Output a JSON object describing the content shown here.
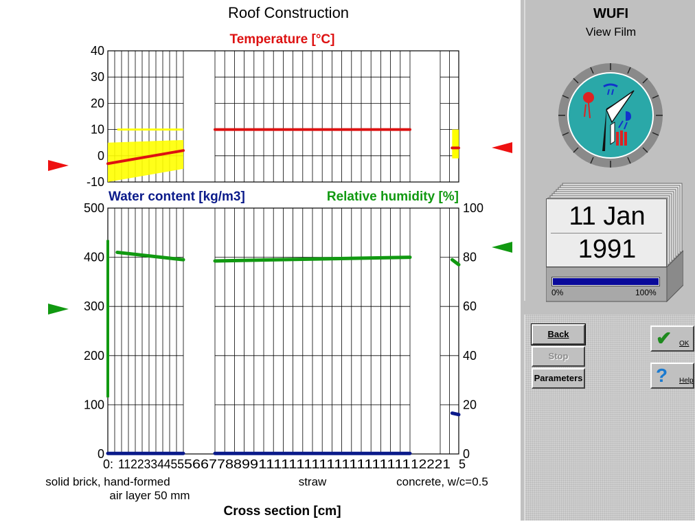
{
  "chart_title": "Roof Construction",
  "temperature": {
    "axis_title": "Temperature [°C]",
    "ylim": [
      -10,
      40
    ],
    "ticks": [
      "40",
      "30",
      "20",
      "10",
      "0",
      "-10"
    ]
  },
  "moisture": {
    "left_axis_title": "Water content [kg/m3]",
    "right_axis_title": "Relative humidity [%]",
    "left_ylim": [
      0,
      500
    ],
    "right_ylim": [
      0,
      100
    ],
    "left_ticks": [
      "500",
      "400",
      "300",
      "200",
      "100",
      "0"
    ],
    "right_ticks": [
      "100",
      "80",
      "60",
      "40",
      "20",
      "0"
    ]
  },
  "x_axis": {
    "title": "Cross section [cm]",
    "tick_segments": [
      "0:",
      "1122334455",
      "566778899",
      "11111111111111111111",
      "12221",
      "5"
    ]
  },
  "layers": [
    {
      "name": "solid brick, hand-formed",
      "x_cm": [
        0,
        12
      ]
    },
    {
      "name": "air layer 50 mm",
      "x_cm": [
        12,
        17
      ]
    },
    {
      "name": "straw",
      "x_cm": [
        17,
        47
      ]
    },
    {
      "name": "concrete, w/c=0.5",
      "x_cm": [
        47,
        54
      ]
    }
  ],
  "chart_data": {
    "type": "line",
    "series": [
      {
        "name": "Temperature [°C]",
        "color": "#dd1111",
        "segments": [
          {
            "x": [
              0,
              12
            ],
            "y": [
              -3,
              2
            ]
          },
          {
            "x": [
              17,
              47
            ],
            "y": [
              10,
              10
            ]
          },
          {
            "x": [
              51.5,
              54
            ],
            "y": [
              3,
              3
            ]
          }
        ]
      },
      {
        "name": "Relative humidity [%]",
        "color": "#119911",
        "segments": [
          {
            "x": [
              1.5,
              12
            ],
            "y": [
              82,
              79
            ]
          },
          {
            "x": [
              17,
              47
            ],
            "y": [
              78.5,
              80
            ]
          },
          {
            "x": [
              51.5,
              54
            ],
            "y": [
              79,
              77
            ]
          }
        ]
      },
      {
        "name": "Water content [kg/m3]",
        "color": "#0a1a8a",
        "segments": [
          {
            "x": [
              0,
              12
            ],
            "y": [
              1,
              1
            ]
          },
          {
            "x": [
              17,
              47
            ],
            "y": [
              1,
              1
            ]
          },
          {
            "x": [
              51.5,
              54
            ],
            "y": [
              83,
              80
            ]
          }
        ]
      }
    ]
  },
  "app": {
    "title": "WUFI",
    "subtitle": "View Film",
    "date_day": "11 Jan",
    "date_year": "1991",
    "progress": 1.0,
    "progress_min": "0%",
    "progress_max": "100%"
  },
  "buttons": {
    "back": "Back",
    "stop": "Stop",
    "parameters": "Parameters",
    "ok": "OK",
    "help": "Help"
  },
  "colors": {
    "temperature": "#dd1111",
    "humidity": "#119911",
    "water": "#0a1a8a",
    "temp_band": "#ffff00",
    "progress": "#0a0a9a"
  }
}
